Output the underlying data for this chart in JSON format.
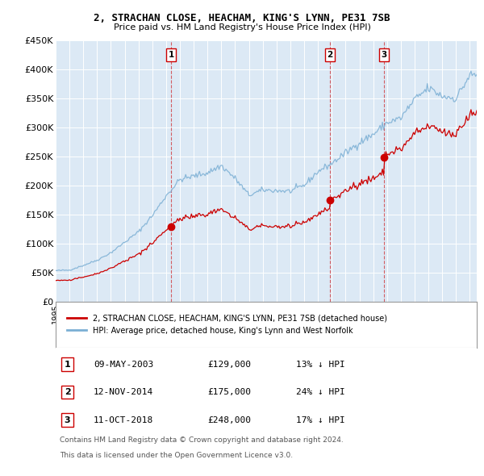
{
  "title": "2, STRACHAN CLOSE, HEACHAM, KING'S LYNN, PE31 7SB",
  "subtitle": "Price paid vs. HM Land Registry's House Price Index (HPI)",
  "ylim": [
    0,
    450000
  ],
  "yticks": [
    0,
    50000,
    100000,
    150000,
    200000,
    250000,
    300000,
    350000,
    400000,
    450000
  ],
  "ytick_labels": [
    "£0",
    "£50K",
    "£100K",
    "£150K",
    "£200K",
    "£250K",
    "£300K",
    "£350K",
    "£400K",
    "£450K"
  ],
  "xlim_start": 1995.0,
  "xlim_end": 2025.5,
  "background_color": "#dce9f5",
  "legend_line1": "2, STRACHAN CLOSE, HEACHAM, KING'S LYNN, PE31 7SB (detached house)",
  "legend_line2": "HPI: Average price, detached house, King's Lynn and West Norfolk",
  "red_color": "#cc0000",
  "blue_color": "#7bafd4",
  "sale_events": [
    {
      "num": 1,
      "date": "09-MAY-2003",
      "price": "£129,000",
      "pct": "13%",
      "year": 2003.37
    },
    {
      "num": 2,
      "date": "12-NOV-2014",
      "price": "£175,000",
      "pct": "24%",
      "year": 2014.87
    },
    {
      "num": 3,
      "date": "11-OCT-2018",
      "price": "£248,000",
      "pct": "17%",
      "year": 2018.79
    }
  ],
  "sale_prices": [
    129000,
    175000,
    248000
  ],
  "footer_line1": "Contains HM Land Registry data © Crown copyright and database right 2024.",
  "footer_line2": "This data is licensed under the Open Government Licence v3.0."
}
